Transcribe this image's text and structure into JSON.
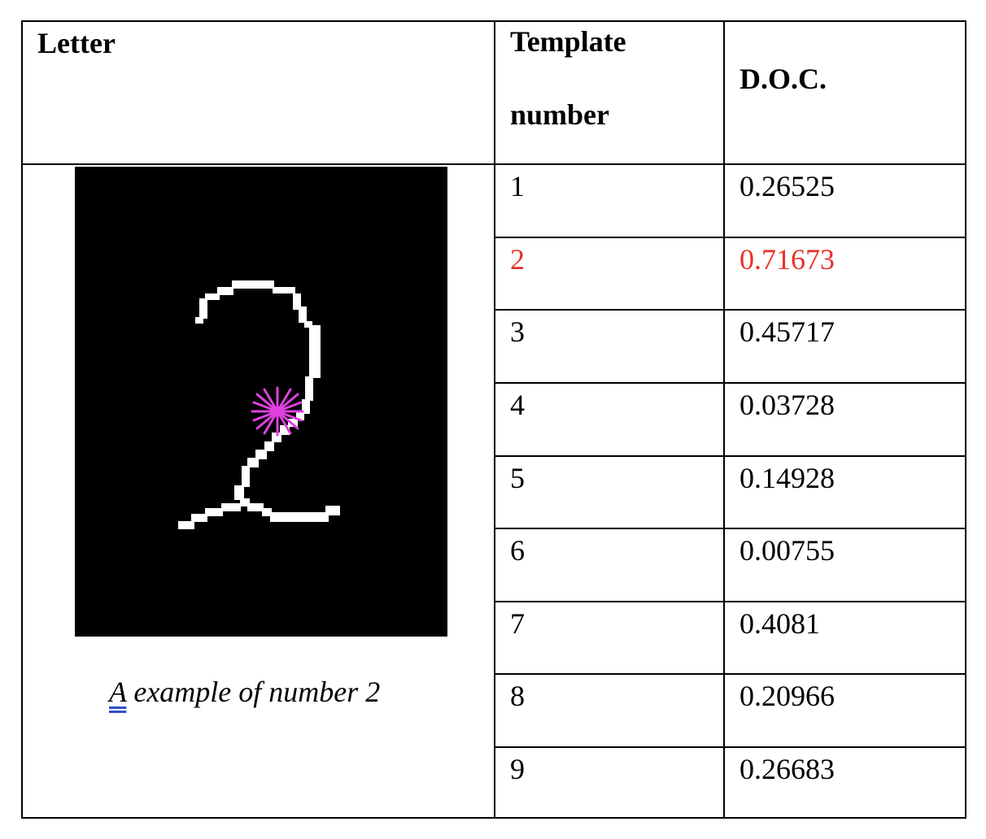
{
  "headers": {
    "letter": "Letter",
    "template_line1": "Template",
    "template_line2": "number",
    "doc": "D.O.C."
  },
  "caption": {
    "first_word": "A",
    "rest": " example of number 2"
  },
  "highlight_color": "#e8322a",
  "marker_color": "#e040e0",
  "rows": [
    {
      "template": "1",
      "doc": "0.26525",
      "highlight": false
    },
    {
      "template": "2",
      "doc": "0.71673",
      "highlight": true
    },
    {
      "template": "3",
      "doc": "0.45717",
      "highlight": false
    },
    {
      "template": "4",
      "doc": "0.03728",
      "highlight": false
    },
    {
      "template": "5",
      "doc": "0.14928",
      "highlight": false
    },
    {
      "template": "6",
      "doc": "0.00755",
      "highlight": false
    },
    {
      "template": "7",
      "doc": "0.4081",
      "highlight": false
    },
    {
      "template": "8",
      "doc": "0.20966",
      "highlight": false
    },
    {
      "template": "9",
      "doc": "0.26683",
      "highlight": false
    }
  ]
}
